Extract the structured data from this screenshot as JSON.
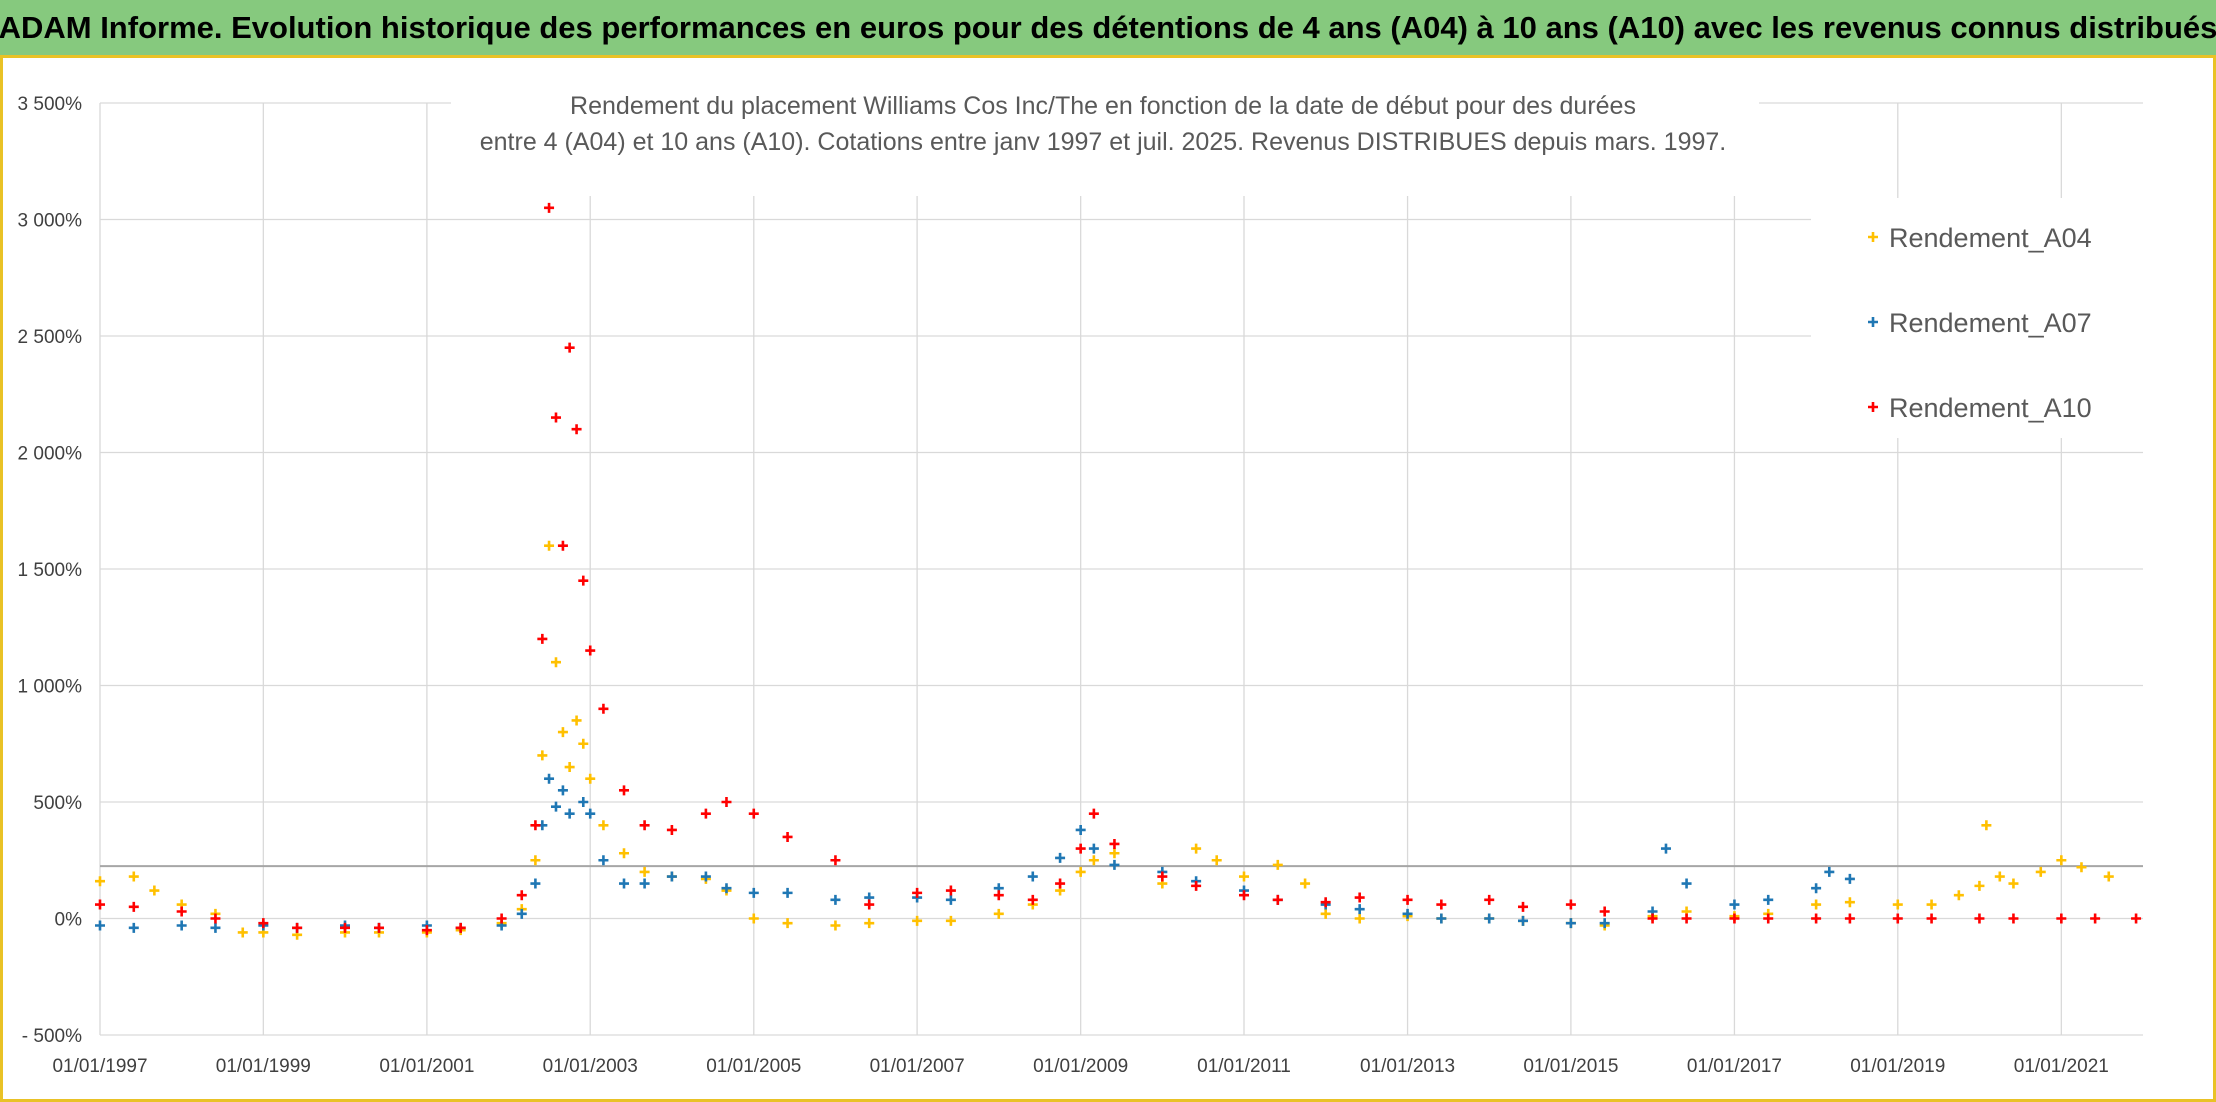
{
  "banner": {
    "title": "ADAM Informe. Evolution historique des performances en euros pour des détentions de 4 ans (A04) à 10 ans (A10) avec les revenus connus distribués"
  },
  "colors": {
    "banner_bg": "#86c97e",
    "frame": "#e9c226",
    "A04": "#ffc000",
    "A07": "#1f77b4",
    "A10": "#ff0000",
    "grid": "#d9d9d9",
    "reference_line": "#a6a6a6"
  },
  "chart_data": {
    "type": "scatter",
    "title": [
      "Rendement du placement Williams Cos Inc/The en fonction de la date de début pour des durées",
      "entre 4 (A04) et 10 ans (A10). Cotations entre janv 1997 et juil. 2025. Revenus DISTRIBUES depuis mars. 1997."
    ],
    "xlabel": "",
    "ylabel": "",
    "x_ticks": [
      "01/01/1997",
      "01/01/1999",
      "01/01/2001",
      "01/01/2003",
      "01/01/2005",
      "01/01/2007",
      "01/01/2009",
      "01/01/2011",
      "01/01/2013",
      "01/01/2015",
      "01/01/2017",
      "01/01/2019",
      "01/01/2021"
    ],
    "xlim": [
      "1997-01-01",
      "2022-01-01"
    ],
    "y_ticks": [
      "- 500%",
      "0%",
      "500%",
      "1 000%",
      "1 500%",
      "2 000%",
      "2 500%",
      "3 000%",
      "3 500%"
    ],
    "ylim": [
      -500,
      3500
    ],
    "reference_line_y": 225,
    "grid": true,
    "legend_position": "top-right",
    "marker": "+",
    "series": [
      {
        "name": "Rendement_A04",
        "color": "#ffc000",
        "points": [
          [
            "1997-01",
            160
          ],
          [
            "1997-06",
            180
          ],
          [
            "1997-09",
            120
          ],
          [
            "1998-01",
            60
          ],
          [
            "1998-06",
            20
          ],
          [
            "1998-10",
            -60
          ],
          [
            "1999-01",
            -60
          ],
          [
            "1999-06",
            -70
          ],
          [
            "2000-01",
            -60
          ],
          [
            "2000-06",
            -60
          ],
          [
            "2001-01",
            -60
          ],
          [
            "2001-06",
            -50
          ],
          [
            "2001-12",
            -20
          ],
          [
            "2002-03",
            40
          ],
          [
            "2002-05",
            250
          ],
          [
            "2002-06",
            700
          ],
          [
            "2002-07",
            1600
          ],
          [
            "2002-08",
            1100
          ],
          [
            "2002-09",
            800
          ],
          [
            "2002-10",
            650
          ],
          [
            "2002-11",
            850
          ],
          [
            "2002-12",
            750
          ],
          [
            "2003-01",
            600
          ],
          [
            "2003-03",
            400
          ],
          [
            "2003-06",
            280
          ],
          [
            "2003-09",
            200
          ],
          [
            "2004-01",
            180
          ],
          [
            "2004-06",
            170
          ],
          [
            "2004-09",
            120
          ],
          [
            "2005-01",
            0
          ],
          [
            "2005-06",
            -20
          ],
          [
            "2006-01",
            -30
          ],
          [
            "2006-06",
            -20
          ],
          [
            "2007-01",
            -10
          ],
          [
            "2007-06",
            -10
          ],
          [
            "2008-01",
            20
          ],
          [
            "2008-06",
            60
          ],
          [
            "2008-10",
            120
          ],
          [
            "2009-01",
            200
          ],
          [
            "2009-03",
            250
          ],
          [
            "2009-06",
            280
          ],
          [
            "2010-01",
            150
          ],
          [
            "2010-06",
            300
          ],
          [
            "2010-09",
            250
          ],
          [
            "2011-01",
            180
          ],
          [
            "2011-06",
            230
          ],
          [
            "2011-10",
            150
          ],
          [
            "2012-01",
            20
          ],
          [
            "2012-06",
            0
          ],
          [
            "2013-01",
            10
          ],
          [
            "2013-06",
            0
          ],
          [
            "2014-01",
            0
          ],
          [
            "2014-06",
            -10
          ],
          [
            "2015-01",
            -20
          ],
          [
            "2015-06",
            -30
          ],
          [
            "2016-01",
            10
          ],
          [
            "2016-06",
            30
          ],
          [
            "2017-01",
            10
          ],
          [
            "2017-06",
            20
          ],
          [
            "2018-01",
            60
          ],
          [
            "2018-06",
            70
          ],
          [
            "2019-01",
            60
          ],
          [
            "2019-06",
            60
          ],
          [
            "2019-10",
            100
          ],
          [
            "2020-01",
            140
          ],
          [
            "2020-02",
            400
          ],
          [
            "2020-04",
            180
          ],
          [
            "2020-06",
            150
          ],
          [
            "2020-10",
            200
          ],
          [
            "2021-01",
            250
          ],
          [
            "2021-04",
            220
          ],
          [
            "2021-08",
            180
          ]
        ]
      },
      {
        "name": "Rendement_A07",
        "color": "#1f77b4",
        "points": [
          [
            "1997-01",
            -30
          ],
          [
            "1997-06",
            -40
          ],
          [
            "1998-01",
            -30
          ],
          [
            "1998-06",
            -40
          ],
          [
            "1999-01",
            -30
          ],
          [
            "1999-06",
            -40
          ],
          [
            "2000-01",
            -30
          ],
          [
            "2000-06",
            -40
          ],
          [
            "2001-01",
            -30
          ],
          [
            "2001-06",
            -40
          ],
          [
            "2001-12",
            -30
          ],
          [
            "2002-03",
            20
          ],
          [
            "2002-05",
            150
          ],
          [
            "2002-06",
            400
          ],
          [
            "2002-07",
            600
          ],
          [
            "2002-08",
            480
          ],
          [
            "2002-09",
            550
          ],
          [
            "2002-10",
            450
          ],
          [
            "2002-12",
            500
          ],
          [
            "2003-01",
            450
          ],
          [
            "2003-03",
            250
          ],
          [
            "2003-06",
            150
          ],
          [
            "2003-09",
            150
          ],
          [
            "2004-01",
            180
          ],
          [
            "2004-06",
            180
          ],
          [
            "2004-09",
            130
          ],
          [
            "2005-01",
            110
          ],
          [
            "2005-06",
            110
          ],
          [
            "2006-01",
            80
          ],
          [
            "2006-06",
            90
          ],
          [
            "2007-01",
            90
          ],
          [
            "2007-06",
            80
          ],
          [
            "2008-01",
            130
          ],
          [
            "2008-06",
            180
          ],
          [
            "2008-10",
            260
          ],
          [
            "2009-01",
            380
          ],
          [
            "2009-03",
            300
          ],
          [
            "2009-06",
            230
          ],
          [
            "2010-01",
            200
          ],
          [
            "2010-06",
            160
          ],
          [
            "2011-01",
            120
          ],
          [
            "2011-06",
            80
          ],
          [
            "2012-01",
            60
          ],
          [
            "2012-06",
            40
          ],
          [
            "2013-01",
            20
          ],
          [
            "2013-06",
            0
          ],
          [
            "2014-01",
            0
          ],
          [
            "2014-06",
            -10
          ],
          [
            "2015-01",
            -20
          ],
          [
            "2015-06",
            -20
          ],
          [
            "2016-01",
            30
          ],
          [
            "2016-03",
            300
          ],
          [
            "2016-06",
            150
          ],
          [
            "2017-01",
            60
          ],
          [
            "2017-06",
            80
          ],
          [
            "2018-01",
            130
          ],
          [
            "2018-03",
            200
          ],
          [
            "2018-06",
            170
          ]
        ]
      },
      {
        "name": "Rendement_A10",
        "color": "#ff0000",
        "points": [
          [
            "1997-01",
            60
          ],
          [
            "1997-06",
            50
          ],
          [
            "1998-01",
            30
          ],
          [
            "1998-06",
            0
          ],
          [
            "1999-01",
            -20
          ],
          [
            "1999-06",
            -40
          ],
          [
            "2000-01",
            -40
          ],
          [
            "2000-06",
            -40
          ],
          [
            "2001-01",
            -50
          ],
          [
            "2001-06",
            -40
          ],
          [
            "2001-12",
            0
          ],
          [
            "2002-03",
            100
          ],
          [
            "2002-05",
            400
          ],
          [
            "2002-06",
            1200
          ],
          [
            "2002-07",
            3050
          ],
          [
            "2002-08",
            2150
          ],
          [
            "2002-09",
            1600
          ],
          [
            "2002-10",
            2450
          ],
          [
            "2002-11",
            2100
          ],
          [
            "2002-12",
            1450
          ],
          [
            "2003-01",
            1150
          ],
          [
            "2003-03",
            900
          ],
          [
            "2003-06",
            550
          ],
          [
            "2003-09",
            400
          ],
          [
            "2004-01",
            380
          ],
          [
            "2004-06",
            450
          ],
          [
            "2004-09",
            500
          ],
          [
            "2005-01",
            450
          ],
          [
            "2005-06",
            350
          ],
          [
            "2006-01",
            250
          ],
          [
            "2006-06",
            60
          ],
          [
            "2007-01",
            110
          ],
          [
            "2007-06",
            120
          ],
          [
            "2008-01",
            100
          ],
          [
            "2008-06",
            80
          ],
          [
            "2008-10",
            150
          ],
          [
            "2009-01",
            300
          ],
          [
            "2009-03",
            450
          ],
          [
            "2009-06",
            320
          ],
          [
            "2010-01",
            180
          ],
          [
            "2010-06",
            140
          ],
          [
            "2011-01",
            100
          ],
          [
            "2011-06",
            80
          ],
          [
            "2012-01",
            70
          ],
          [
            "2012-06",
            90
          ],
          [
            "2013-01",
            80
          ],
          [
            "2013-06",
            60
          ],
          [
            "2014-01",
            80
          ],
          [
            "2014-06",
            50
          ],
          [
            "2015-01",
            60
          ],
          [
            "2015-06",
            30
          ],
          [
            "2016-01",
            0
          ],
          [
            "2016-06",
            0
          ],
          [
            "2017-01",
            0
          ],
          [
            "2017-06",
            0
          ],
          [
            "2018-01",
            0
          ],
          [
            "2018-06",
            0
          ],
          [
            "2019-01",
            0
          ],
          [
            "2019-06",
            0
          ],
          [
            "2020-01",
            0
          ],
          [
            "2020-06",
            0
          ],
          [
            "2021-01",
            0
          ],
          [
            "2021-06",
            0
          ],
          [
            "2021-12",
            0
          ]
        ]
      }
    ]
  }
}
